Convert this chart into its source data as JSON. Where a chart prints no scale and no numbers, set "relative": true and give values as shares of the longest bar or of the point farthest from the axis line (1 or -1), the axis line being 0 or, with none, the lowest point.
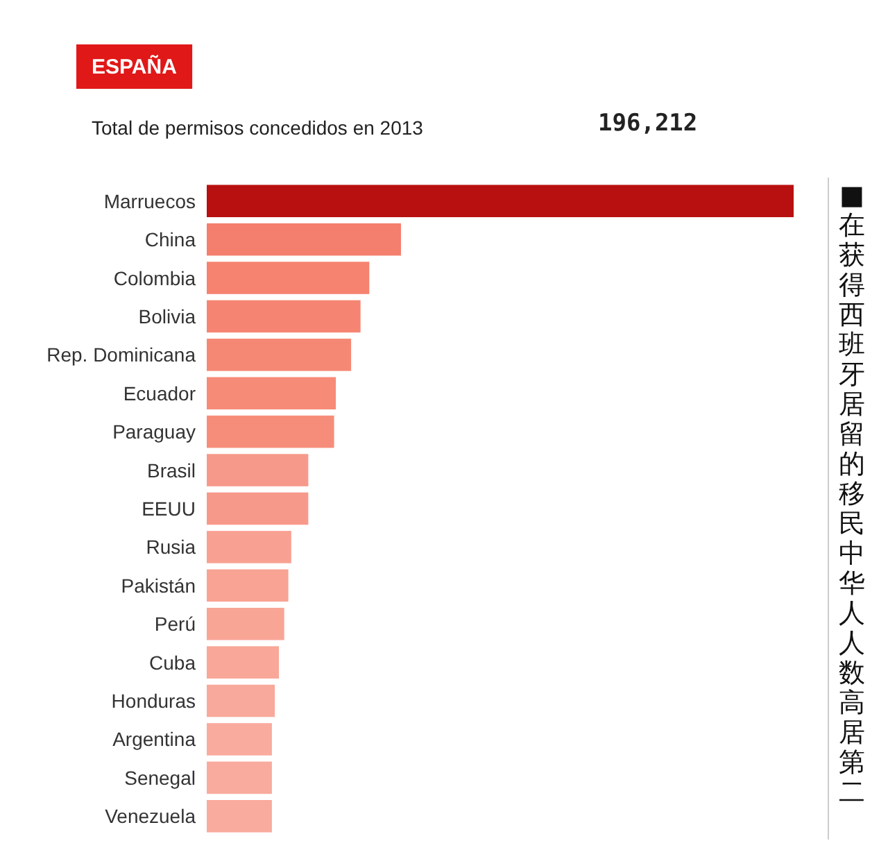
{
  "chart_data": {
    "type": "bar",
    "orientation": "horizontal",
    "relative": true,
    "title": "ESPAÑA",
    "subtitle": "Total de permisos concedidos en 2013",
    "annotations": [
      "196,212",
      "■在获得西班牙居留的移民中华人人数高居第二"
    ],
    "categories": [
      "Marruecos",
      "China",
      "Colombia",
      "Bolivia",
      "Rep. Dominicana",
      "Ecuador",
      "Paraguay",
      "Brasil",
      "EEUU",
      "Rusia",
      "Pakistán",
      "Perú",
      "Cuba",
      "Honduras",
      "Argentina",
      "Senegal",
      "Venezuela"
    ],
    "values": [
      1,
      0.331,
      0.277,
      0.262,
      0.246,
      0.22,
      0.217,
      0.173,
      0.173,
      0.144,
      0.139,
      0.132,
      0.123,
      0.116,
      0.111,
      0.111,
      0.111
    ],
    "colors": [
      "#b81010",
      "#f47f6e",
      "#f5836f",
      "#f58572",
      "#f58875",
      "#f68b78",
      "#f68d7a",
      "#f7998a",
      "#f7998a",
      "#f8a192",
      "#f8a394",
      "#f8a596",
      "#f8a798",
      "#f9a99b",
      "#f9ab9d",
      "#f9ab9d",
      "#f9ab9d"
    ]
  }
}
